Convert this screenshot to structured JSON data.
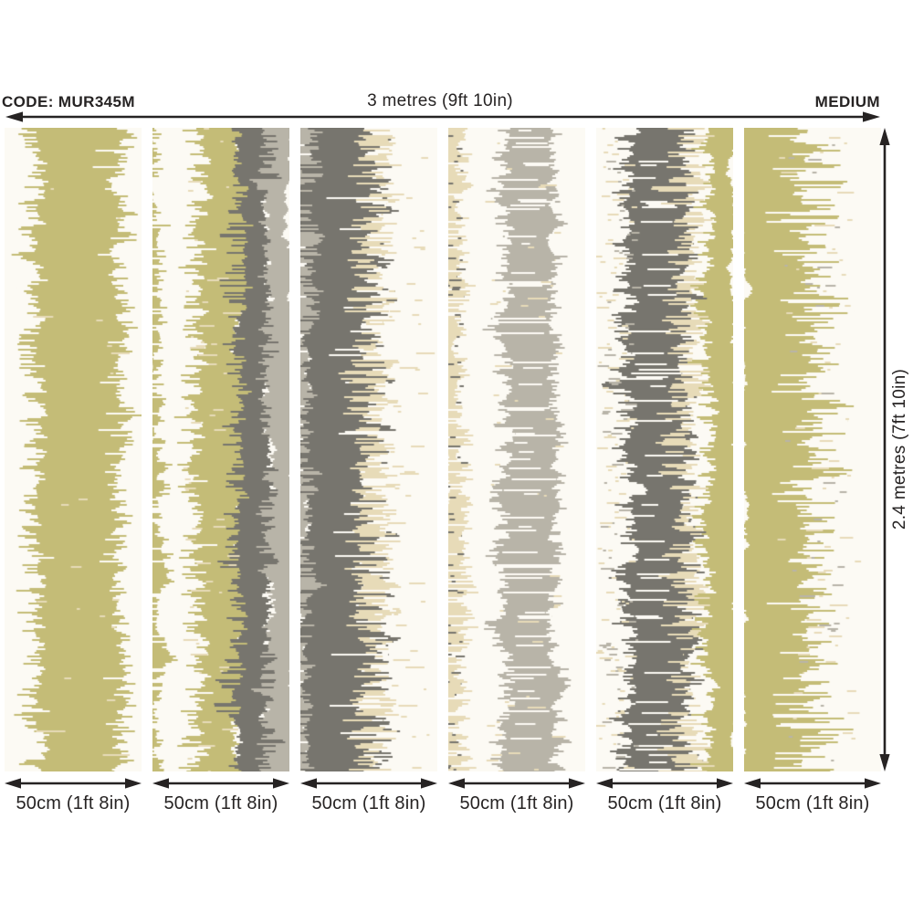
{
  "labels": {
    "code": "CODE: MUR345M",
    "total_width": "3 metres (9ft 10in)",
    "size_rating": "MEDIUM",
    "total_height": "2.4 metres (7ft 10in)"
  },
  "colors": {
    "ink": "#262323",
    "page_bg": "#ffffff",
    "panel_bg": "#fcfaf4",
    "olive": "#c4bc77",
    "dark_gray": "#77756e",
    "light_gray": "#b8b4a8",
    "beige": "#e7dbb8"
  },
  "panels": [
    {
      "width_label": "50cm (1ft 8in)",
      "bands": [
        {
          "type": "band",
          "color": "olive",
          "c0": 0.3,
          "c1": 0.8,
          "f0": 0.3,
          "f1": 0.2,
          "d": 1
        },
        {
          "type": "band",
          "color": "panel_bg",
          "c0": -0.02,
          "c1": 0.02,
          "f0": 0,
          "f1": 0.5,
          "d": 0.45
        },
        {
          "type": "band",
          "color": "panel_bg",
          "c0": 0.93,
          "c1": 1.02,
          "f0": 0.35,
          "f1": 0,
          "d": 0.4
        },
        {
          "type": "flecks",
          "color": "beige",
          "c0": 0.15,
          "c1": 0.85,
          "d": 0.12,
          "lmax": 0.2
        }
      ]
    },
    {
      "width_label": "50cm (1ft 8in)",
      "bands": [
        {
          "type": "band",
          "color": "light_gray",
          "c0": 0.86,
          "c1": 1.02,
          "f0": 0.1,
          "f1": 0,
          "d": 1
        },
        {
          "type": "band",
          "color": "dark_gray",
          "c0": 0.6,
          "c1": 0.83,
          "f0": 0.12,
          "f1": 0.1,
          "d": 1
        },
        {
          "type": "band",
          "color": "olive",
          "c0": 0.4,
          "c1": 0.62,
          "f0": 0.28,
          "f1": 0.1,
          "d": 1
        },
        {
          "type": "band",
          "color": "olive",
          "c0": -0.06,
          "c1": 0.02,
          "f0": 0,
          "f1": 0.14,
          "d": 0.8
        },
        {
          "type": "flecks",
          "color": "beige",
          "c0": 0.25,
          "c1": 0.6,
          "d": 0.25,
          "lmax": 0.15
        },
        {
          "type": "band",
          "color": "panel_bg",
          "c0": 0.1,
          "c1": 0.14,
          "f0": 0,
          "f1": 0.45,
          "d": 0.3
        }
      ]
    },
    {
      "width_label": "50cm (1ft 8in)",
      "bands": [
        {
          "type": "band",
          "color": "light_gray",
          "c0": -0.05,
          "c1": 0.06,
          "f0": 0,
          "f1": 0.12,
          "d": 0.9
        },
        {
          "type": "band",
          "color": "dark_gray",
          "c0": 0.05,
          "c1": 0.45,
          "f0": 0.1,
          "f1": 0.3,
          "d": 1
        },
        {
          "type": "band",
          "color": "beige",
          "c0": 0.46,
          "c1": 0.56,
          "f0": 0.18,
          "f1": 0.22,
          "d": 0.75
        },
        {
          "type": "flecks",
          "color": "beige",
          "c0": 0.6,
          "c1": 0.95,
          "d": 0.18,
          "lmax": 0.12
        },
        {
          "type": "band",
          "color": "panel_bg",
          "c0": 0.55,
          "c1": 0.6,
          "f0": 0.45,
          "f1": 0.05,
          "d": 0.3
        }
      ]
    },
    {
      "width_label": "50cm (1ft 8in)",
      "bands": [
        {
          "type": "band",
          "color": "beige",
          "c0": -0.05,
          "c1": 0.06,
          "f0": 0,
          "f1": 0.18,
          "d": 0.85
        },
        {
          "type": "flecks",
          "color": "dark_gray",
          "c0": 0.0,
          "c1": 0.1,
          "d": 0.3,
          "lmax": 0.08
        },
        {
          "type": "band",
          "color": "light_gray",
          "c0": 0.46,
          "c1": 0.74,
          "f0": 0.2,
          "f1": 0.16,
          "d": 1
        },
        {
          "type": "flecks",
          "color": "beige",
          "c0": 0.3,
          "c1": 0.8,
          "d": 0.3,
          "lmax": 0.14
        },
        {
          "type": "band",
          "color": "panel_bg",
          "c0": 0.55,
          "c1": 0.6,
          "f0": 0.35,
          "f1": 0.35,
          "d": 0.3
        }
      ]
    },
    {
      "width_label": "50cm (1ft 8in)",
      "bands": [
        {
          "type": "band",
          "color": "olive",
          "c0": 0.86,
          "c1": 1.02,
          "f0": 0.22,
          "f1": 0,
          "d": 1
        },
        {
          "type": "band",
          "color": "dark_gray",
          "c0": 0.3,
          "c1": 0.6,
          "f0": 0.24,
          "f1": 0.22,
          "d": 1
        },
        {
          "type": "band",
          "color": "beige",
          "c0": 0.6,
          "c1": 0.68,
          "f0": 0.2,
          "f1": 0.18,
          "d": 0.6
        },
        {
          "type": "flecks",
          "color": "beige",
          "c0": 0.02,
          "c1": 0.28,
          "d": 0.35,
          "lmax": 0.1
        },
        {
          "type": "flecks",
          "color": "light_gray",
          "c0": 0.05,
          "c1": 0.3,
          "d": 0.2,
          "lmax": 0.08
        },
        {
          "type": "band",
          "color": "panel_bg",
          "c0": 0.4,
          "c1": 0.45,
          "f0": 0.3,
          "f1": 0.3,
          "d": 0.25
        }
      ]
    },
    {
      "width_label": "50cm (1ft 8in)",
      "bands": [
        {
          "type": "band",
          "color": "olive",
          "c0": -0.02,
          "c1": 0.4,
          "f0": 0,
          "f1": 0.45,
          "d": 1
        },
        {
          "type": "flecks",
          "color": "beige",
          "c0": 0.25,
          "c1": 0.8,
          "d": 0.3,
          "lmax": 0.15
        },
        {
          "type": "flecks",
          "color": "light_gray",
          "c0": 0.3,
          "c1": 0.72,
          "d": 0.15,
          "lmax": 0.1
        },
        {
          "type": "band",
          "color": "panel_bg",
          "c0": 0.5,
          "c1": 0.75,
          "f0": 0.45,
          "f1": 0.1,
          "d": 0.55
        }
      ]
    }
  ]
}
